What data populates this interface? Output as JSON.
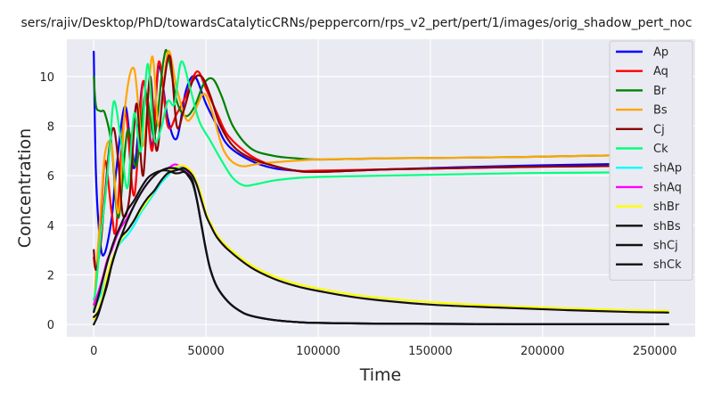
{
  "chart_data": {
    "type": "line",
    "title": "sers/rajiv/Desktop/PhD/towardsCatalyticCRNs/peppercorn/rps_v2_pert/pert/1/images/orig_shadow_pert_noc",
    "xlabel": "Time",
    "ylabel": "Concentration",
    "xlim": [
      -12000,
      268000
    ],
    "ylim": [
      -0.5,
      11.5
    ],
    "xticks": [
      0,
      50000,
      100000,
      150000,
      200000,
      250000
    ],
    "xtick_labels": [
      "0",
      "50000",
      "100000",
      "150000",
      "200000",
      "250000"
    ],
    "yticks": [
      0,
      2,
      4,
      6,
      8,
      10
    ],
    "ytick_labels": [
      "0",
      "2",
      "4",
      "6",
      "8",
      "10"
    ],
    "grid": true,
    "legend_position": "top-right",
    "series": [
      {
        "name": "Ap",
        "color": "#0000ff",
        "x": [
          0,
          1000,
          3000,
          5000,
          8000,
          10000,
          14000,
          18000,
          22000,
          26000,
          29000,
          33000,
          37000,
          41000,
          45000,
          50000,
          55000,
          60000,
          70000,
          80000,
          90000,
          100000,
          130000,
          160000,
          190000,
          220000,
          256000
        ],
        "y": [
          11,
          6,
          3.2,
          2.9,
          4.3,
          6.2,
          8.8,
          6.3,
          9.8,
          7.2,
          10.4,
          8.3,
          7.5,
          9.4,
          10.0,
          8.9,
          8.0,
          7.2,
          6.6,
          6.3,
          6.2,
          6.15,
          6.25,
          6.33,
          6.4,
          6.45,
          6.5
        ]
      },
      {
        "name": "Aq",
        "color": "#ff0000",
        "x": [
          0,
          1000,
          3000,
          5000,
          8000,
          10000,
          14000,
          18000,
          22000,
          26000,
          29000,
          33000,
          37000,
          41000,
          46000,
          50000,
          55000,
          60000,
          70000,
          80000,
          90000,
          100000,
          130000,
          160000,
          190000,
          220000,
          256000
        ],
        "y": [
          2.7,
          2.3,
          4.0,
          6.6,
          4.5,
          3.9,
          8.5,
          5.2,
          9.8,
          7.0,
          10.6,
          8.0,
          8.5,
          9.2,
          10.2,
          9.5,
          8.5,
          7.6,
          6.8,
          6.4,
          6.2,
          6.2,
          6.25,
          6.3,
          6.35,
          6.38,
          6.4
        ]
      },
      {
        "name": "Br",
        "color": "#008000",
        "x": [
          0,
          1000,
          3000,
          5000,
          8000,
          11000,
          15000,
          19000,
          23000,
          27000,
          31000,
          33000,
          37000,
          41000,
          45000,
          49000,
          53000,
          57000,
          62000,
          70000,
          80000,
          90000,
          100000,
          130000,
          160000,
          190000,
          220000,
          256000
        ],
        "y": [
          10,
          8.8,
          8.6,
          8.5,
          7.2,
          4.3,
          7.8,
          6.4,
          9.3,
          7.6,
          10.6,
          10.9,
          9.0,
          8.4,
          8.8,
          9.7,
          9.9,
          9.2,
          8.0,
          7.1,
          6.8,
          6.7,
          6.65,
          6.7,
          6.72,
          6.75,
          6.8,
          6.85
        ]
      },
      {
        "name": "Bs",
        "color": "#ffa500",
        "x": [
          0,
          1000,
          3000,
          5000,
          8000,
          11000,
          14000,
          18000,
          22000,
          26000,
          29000,
          33000,
          37000,
          41000,
          44000,
          49000,
          53000,
          58000,
          65000,
          75000,
          90000,
          100000,
          130000,
          160000,
          190000,
          220000,
          256000
        ],
        "y": [
          0.5,
          2.0,
          4.5,
          6.9,
          7.2,
          4.5,
          8.8,
          10.3,
          7.2,
          10.8,
          8.0,
          11.0,
          9.5,
          8.3,
          8.4,
          9.3,
          8.5,
          7.0,
          6.4,
          6.5,
          6.6,
          6.65,
          6.7,
          6.72,
          6.75,
          6.8,
          6.85
        ]
      },
      {
        "name": "Cj",
        "color": "#8b0000",
        "x": [
          0,
          1000,
          3000,
          5000,
          7000,
          9000,
          11000,
          13000,
          16000,
          19000,
          22000,
          25000,
          28000,
          31000,
          34000,
          37000,
          40000,
          44000,
          48000,
          52000,
          56000,
          62000,
          70000,
          80000,
          90000,
          100000,
          130000,
          160000,
          190000,
          220000,
          256000
        ],
        "y": [
          3.0,
          2.2,
          3.2,
          5.2,
          7.2,
          7.9,
          6.5,
          4.4,
          5.2,
          8.9,
          6.0,
          10.0,
          7.0,
          9.5,
          10.8,
          8.0,
          8.6,
          9.8,
          10.0,
          9.2,
          8.1,
          7.2,
          6.7,
          6.4,
          6.2,
          6.15,
          6.25,
          6.3,
          6.35,
          6.38,
          6.4
        ]
      },
      {
        "name": "Ck",
        "color": "#00ff7f",
        "x": [
          0,
          1000,
          3000,
          5000,
          7000,
          9000,
          12000,
          15000,
          18000,
          21000,
          24000,
          27000,
          30000,
          33000,
          36000,
          39000,
          43000,
          47000,
          52000,
          57000,
          62000,
          67000,
          72000,
          80000,
          90000,
          100000,
          130000,
          160000,
          190000,
          220000,
          256000
        ],
        "y": [
          1.0,
          1.5,
          3.5,
          5.0,
          7.0,
          9.0,
          7.5,
          5.5,
          8.5,
          7.0,
          10.5,
          7.5,
          7.9,
          9.0,
          8.9,
          10.6,
          9.5,
          8.2,
          7.4,
          6.6,
          5.9,
          5.6,
          5.65,
          5.8,
          5.9,
          5.95,
          6.0,
          6.05,
          6.1,
          6.12,
          6.15
        ]
      },
      {
        "name": "shAp",
        "color": "#00ffff",
        "x": [
          0,
          2000,
          4000,
          6000,
          8000,
          10000,
          12000,
          15000,
          18000,
          21000,
          24000,
          27000,
          30000,
          33000,
          36000,
          38000,
          40000,
          42000,
          44000,
          46000,
          48000,
          50000,
          52000,
          55000,
          60000,
          65000,
          70000,
          80000,
          90000,
          100000,
          130000,
          160000,
          190000,
          220000,
          256000
        ],
        "y": [
          0.6,
          1.0,
          1.4,
          2.0,
          2.4,
          3.0,
          3.3,
          3.6,
          4.0,
          4.5,
          4.9,
          5.3,
          5.7,
          6.0,
          6.3,
          6.35,
          6.3,
          6.0,
          5.7,
          5.0,
          4.0,
          3.0,
          2.2,
          1.5,
          0.9,
          0.55,
          0.35,
          0.18,
          0.1,
          0.06,
          0.03,
          0.02,
          0.01,
          0.01,
          0.01
        ]
      },
      {
        "name": "shAq",
        "color": "#ff00ff",
        "x": [
          0,
          2000,
          4000,
          6000,
          8000,
          10000,
          12000,
          15000,
          18000,
          21000,
          24000,
          27000,
          30000,
          33000,
          36000,
          38000,
          40000,
          42000,
          44000,
          46000,
          48000,
          50000,
          52000,
          55000,
          60000,
          65000,
          70000,
          80000,
          90000,
          100000,
          130000,
          160000,
          190000,
          220000,
          256000
        ],
        "y": [
          0.8,
          1.3,
          1.9,
          2.6,
          3.0,
          3.5,
          3.9,
          4.3,
          4.8,
          5.3,
          5.7,
          6.0,
          6.2,
          6.3,
          6.45,
          6.4,
          6.35,
          6.1,
          5.8,
          5.0,
          4.0,
          3.0,
          2.2,
          1.5,
          0.9,
          0.55,
          0.35,
          0.18,
          0.1,
          0.06,
          0.03,
          0.02,
          0.01,
          0.01,
          0.01
        ]
      },
      {
        "name": "shBr",
        "color": "#ffff00",
        "x": [
          0,
          2000,
          4000,
          6000,
          8000,
          10000,
          12000,
          15000,
          18000,
          21000,
          24000,
          27000,
          30000,
          33000,
          36000,
          38000,
          40000,
          42000,
          44000,
          46000,
          48000,
          50000,
          52000,
          55000,
          60000,
          70000,
          80000,
          90000,
          100000,
          120000,
          150000,
          180000,
          210000,
          240000,
          256000
        ],
        "y": [
          0.2,
          0.6,
          1.2,
          2.0,
          2.6,
          3.0,
          3.4,
          3.8,
          4.2,
          4.6,
          5.0,
          5.4,
          5.8,
          6.1,
          6.3,
          6.4,
          6.4,
          6.3,
          6.1,
          5.7,
          5.2,
          4.5,
          4.1,
          3.6,
          3.1,
          2.4,
          1.95,
          1.65,
          1.45,
          1.15,
          0.9,
          0.75,
          0.65,
          0.57,
          0.55
        ]
      },
      {
        "name": "shBs",
        "color": "#111111",
        "x": [
          0,
          2000,
          4000,
          6000,
          8000,
          10000,
          12000,
          15000,
          18000,
          21000,
          24000,
          27000,
          30000,
          33000,
          36000,
          38000,
          40000,
          42000,
          44000,
          46000,
          48000,
          50000,
          52000,
          55000,
          60000,
          70000,
          80000,
          90000,
          100000,
          120000,
          150000,
          180000,
          210000,
          240000,
          256000
        ],
        "y": [
          0.3,
          0.5,
          1.0,
          1.6,
          2.4,
          3.0,
          3.5,
          3.8,
          4.2,
          4.7,
          5.1,
          5.4,
          5.8,
          6.1,
          6.2,
          6.25,
          6.3,
          6.2,
          6.0,
          5.6,
          5.0,
          4.4,
          4.0,
          3.5,
          3.0,
          2.3,
          1.85,
          1.55,
          1.35,
          1.05,
          0.8,
          0.68,
          0.58,
          0.5,
          0.48
        ]
      },
      {
        "name": "shCj",
        "color": "#111111",
        "x": [
          0,
          2000,
          4000,
          6000,
          8000,
          10000,
          12000,
          15000,
          18000,
          21000,
          24000,
          27000,
          30000,
          33000,
          36000,
          38000,
          40000,
          42000,
          44000,
          46000,
          48000,
          50000,
          52000,
          55000,
          60000,
          65000,
          70000,
          80000,
          90000,
          100000,
          130000,
          160000,
          190000,
          220000,
          256000
        ],
        "y": [
          0.5,
          1.1,
          1.8,
          2.5,
          3.1,
          3.6,
          4.0,
          4.6,
          5.0,
          5.5,
          5.9,
          6.1,
          6.2,
          6.2,
          6.1,
          6.1,
          6.15,
          6.05,
          5.8,
          5.0,
          4.0,
          3.0,
          2.2,
          1.5,
          0.9,
          0.55,
          0.35,
          0.18,
          0.1,
          0.06,
          0.03,
          0.02,
          0.01,
          0.01,
          0.01
        ]
      },
      {
        "name": "shCk",
        "color": "#111111",
        "x": [
          0,
          2000,
          4000,
          6000,
          8000,
          10000,
          12000,
          15000,
          18000,
          21000,
          24000,
          27000,
          30000,
          33000,
          36000,
          38000,
          40000,
          42000,
          44000,
          46000,
          48000,
          50000,
          52000,
          55000,
          60000,
          65000,
          70000,
          80000,
          90000,
          100000,
          130000,
          160000,
          190000,
          220000,
          256000
        ],
        "y": [
          0.0,
          0.4,
          1.0,
          1.7,
          2.4,
          3.0,
          3.5,
          4.2,
          4.8,
          5.3,
          5.7,
          6.0,
          6.2,
          6.3,
          6.3,
          6.25,
          6.2,
          6.0,
          5.7,
          5.0,
          4.0,
          3.0,
          2.2,
          1.5,
          0.9,
          0.55,
          0.35,
          0.18,
          0.1,
          0.06,
          0.03,
          0.02,
          0.01,
          0.01,
          0.01
        ]
      }
    ]
  }
}
